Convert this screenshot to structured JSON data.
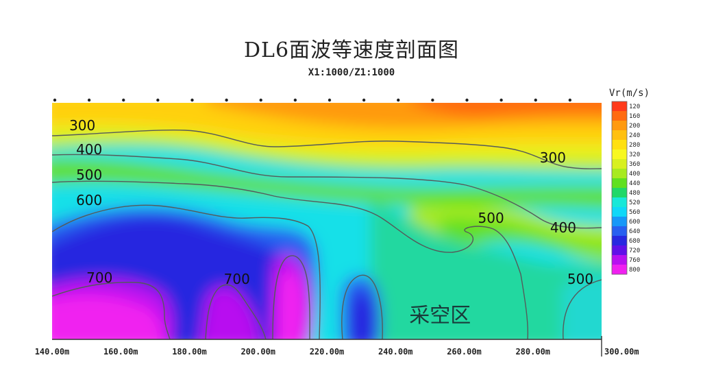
{
  "chart_data": {
    "type": "heatmap",
    "title": "DL6面波等速度剖面图",
    "subtitle": "X1:1000/Z1:1000",
    "x_range": [
      140,
      300
    ],
    "x_ticks": [
      {
        "value": 140,
        "label": "140.00m"
      },
      {
        "value": 160,
        "label": "160.00m"
      },
      {
        "value": 180,
        "label": "180.00m"
      },
      {
        "value": 200,
        "label": "200.00m"
      },
      {
        "value": 220,
        "label": "220.00m"
      },
      {
        "value": 240,
        "label": "240.00m"
      },
      {
        "value": 260,
        "label": "260.00m"
      },
      {
        "value": 280,
        "label": "280.00m"
      },
      {
        "value": 300,
        "label": "300.00m"
      }
    ],
    "colorbar": {
      "title": "Vr(m/s)",
      "ticks": [
        120,
        160,
        200,
        240,
        280,
        320,
        360,
        400,
        440,
        480,
        520,
        560,
        600,
        640,
        680,
        720,
        760,
        800
      ],
      "colors": [
        "#ff3a1a",
        "#ff6a10",
        "#ff9a10",
        "#ffc010",
        "#ffe010",
        "#f8f820",
        "#d8f020",
        "#a8ea20",
        "#60e020",
        "#20d868",
        "#18e8d8",
        "#10d8f8",
        "#1898f8",
        "#2860f0",
        "#2828e0",
        "#6010e8",
        "#b810f0",
        "#f020f0"
      ]
    },
    "contours": [
      300,
      400,
      500,
      600,
      700
    ],
    "contour_labels": [
      {
        "text": "300",
        "x": 145,
        "value": 300
      },
      {
        "text": "400",
        "x": 147,
        "value": 400
      },
      {
        "text": "500",
        "x": 147,
        "value": 500
      },
      {
        "text": "600",
        "x": 147,
        "value": 600
      },
      {
        "text": "700",
        "x": 150,
        "value": 700
      },
      {
        "text": "700",
        "x": 190,
        "value": 700
      },
      {
        "text": "300",
        "x": 282,
        "value": 300
      },
      {
        "text": "500",
        "x": 264,
        "value": 500
      },
      {
        "text": "400",
        "x": 285,
        "value": 400
      },
      {
        "text": "500",
        "x": 290,
        "value": 500
      }
    ],
    "annotations": [
      {
        "text": "采空区",
        "x": 244
      }
    ]
  }
}
